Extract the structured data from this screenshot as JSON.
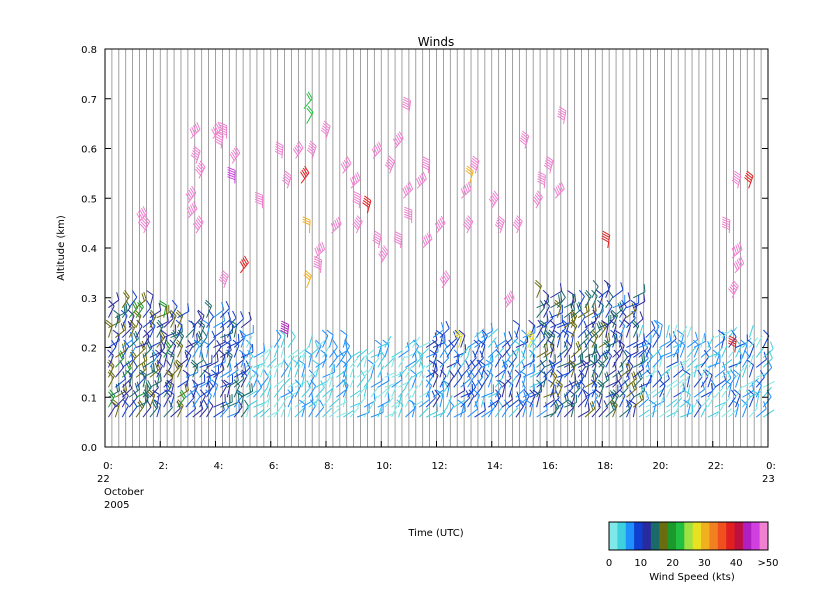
{
  "chart_data": {
    "type": "wind-barb",
    "title": "Winds",
    "xlabel": "Time (UTC)",
    "ylabel": "Altitude (km)",
    "xlim": [
      0,
      24
    ],
    "ylim": [
      0,
      0.8
    ],
    "y_ticks": [
      "0.0",
      "0.1",
      "0.2",
      "0.3",
      "0.4",
      "0.5",
      "0.6",
      "0.7",
      "0.8"
    ],
    "x_ticks": [
      {
        "v": 0,
        "label": "0:"
      },
      {
        "v": 2,
        "label": "2:"
      },
      {
        "v": 4,
        "label": "4:"
      },
      {
        "v": 6,
        "label": "6:"
      },
      {
        "v": 8,
        "label": "8:"
      },
      {
        "v": 10,
        "label": "10:"
      },
      {
        "v": 12,
        "label": "12:"
      },
      {
        "v": 14,
        "label": "14:"
      },
      {
        "v": 16,
        "label": "16:"
      },
      {
        "v": 18,
        "label": "18:"
      },
      {
        "v": 20,
        "label": "20:"
      },
      {
        "v": 22,
        "label": "22:"
      },
      {
        "v": 24,
        "label": "0:"
      }
    ],
    "date_labels": {
      "start_day": "22",
      "start_month": "October",
      "start_year": "2005",
      "end_day": "23"
    },
    "profile_interval_hours": 0.25,
    "grid": "vertical lines at each profile time",
    "low_level_winds": {
      "altitude_range_km": [
        0.05,
        0.3
      ],
      "description_note": "",
      "segments": [
        {
          "t0": 0.0,
          "t1": 2.8,
          "top": 0.28,
          "speed_range": [
            8,
            20
          ]
        },
        {
          "t0": 2.8,
          "t1": 5.0,
          "top": 0.25,
          "speed_range": [
            6,
            16
          ]
        },
        {
          "t0": 5.0,
          "t1": 11.5,
          "top": 0.2,
          "speed_range": [
            0,
            8
          ]
        },
        {
          "t0": 11.5,
          "t1": 15.5,
          "top": 0.22,
          "speed_range": [
            4,
            12
          ]
        },
        {
          "t0": 15.5,
          "t1": 19.2,
          "top": 0.3,
          "speed_range": [
            8,
            18
          ]
        },
        {
          "t0": 19.2,
          "t1": 24.0,
          "top": 0.22,
          "speed_range": [
            0,
            10
          ]
        }
      ]
    },
    "upper_winds": [
      {
        "t": 3.1,
        "alt": 0.62,
        "kts": 52
      },
      {
        "t": 3.3,
        "alt": 0.57,
        "kts": 52
      },
      {
        "t": 3.4,
        "alt": 0.54,
        "kts": 52
      },
      {
        "t": 3.0,
        "alt": 0.49,
        "kts": 52
      },
      {
        "t": 3.0,
        "alt": 0.46,
        "kts": 52
      },
      {
        "t": 3.3,
        "alt": 0.43,
        "kts": 52
      },
      {
        "t": 3.9,
        "alt": 0.62,
        "kts": 52
      },
      {
        "t": 4.2,
        "alt": 0.6,
        "kts": 52
      },
      {
        "t": 4.4,
        "alt": 0.62,
        "kts": 52
      },
      {
        "t": 4.6,
        "alt": 0.57,
        "kts": 52
      },
      {
        "t": 4.7,
        "alt": 0.53,
        "kts": 48
      },
      {
        "t": 4.9,
        "alt": 0.35,
        "kts": 40
      },
      {
        "t": 4.3,
        "alt": 0.32,
        "kts": 52
      },
      {
        "t": 1.2,
        "alt": 0.45,
        "kts": 52
      },
      {
        "t": 1.4,
        "alt": 0.43,
        "kts": 52
      },
      {
        "t": 5.7,
        "alt": 0.48,
        "kts": 52
      },
      {
        "t": 6.4,
        "alt": 0.58,
        "kts": 52
      },
      {
        "t": 6.6,
        "alt": 0.52,
        "kts": 52
      },
      {
        "t": 6.9,
        "alt": 0.58,
        "kts": 52
      },
      {
        "t": 7.1,
        "alt": 0.53,
        "kts": 40
      },
      {
        "t": 7.2,
        "alt": 0.68,
        "kts": 22
      },
      {
        "t": 7.3,
        "alt": 0.65,
        "kts": 22
      },
      {
        "t": 7.3,
        "alt": 0.32,
        "kts": 32
      },
      {
        "t": 7.4,
        "alt": 0.43,
        "kts": 32
      },
      {
        "t": 7.6,
        "alt": 0.38,
        "kts": 52
      },
      {
        "t": 7.5,
        "alt": 0.58,
        "kts": 52
      },
      {
        "t": 7.8,
        "alt": 0.35,
        "kts": 52
      },
      {
        "t": 8.0,
        "alt": 0.62,
        "kts": 52
      },
      {
        "t": 8.2,
        "alt": 0.43,
        "kts": 52
      },
      {
        "t": 8.6,
        "alt": 0.55,
        "kts": 52
      },
      {
        "t": 8.9,
        "alt": 0.52,
        "kts": 52
      },
      {
        "t": 9.1,
        "alt": 0.43,
        "kts": 52
      },
      {
        "t": 9.2,
        "alt": 0.48,
        "kts": 52
      },
      {
        "t": 9.5,
        "alt": 0.47,
        "kts": 40
      },
      {
        "t": 9.7,
        "alt": 0.58,
        "kts": 52
      },
      {
        "t": 9.9,
        "alt": 0.4,
        "kts": 52
      },
      {
        "t": 10.0,
        "alt": 0.37,
        "kts": 52
      },
      {
        "t": 10.3,
        "alt": 0.55,
        "kts": 52
      },
      {
        "t": 10.5,
        "alt": 0.6,
        "kts": 52
      },
      {
        "t": 10.7,
        "alt": 0.4,
        "kts": 52
      },
      {
        "t": 10.8,
        "alt": 0.5,
        "kts": 52
      },
      {
        "t": 11.0,
        "alt": 0.67,
        "kts": 52
      },
      {
        "t": 11.1,
        "alt": 0.45,
        "kts": 52
      },
      {
        "t": 11.3,
        "alt": 0.52,
        "kts": 52
      },
      {
        "t": 11.5,
        "alt": 0.4,
        "kts": 52
      },
      {
        "t": 11.7,
        "alt": 0.55,
        "kts": 52
      },
      {
        "t": 12.0,
        "alt": 0.43,
        "kts": 52
      },
      {
        "t": 12.2,
        "alt": 0.32,
        "kts": 52
      },
      {
        "t": 12.9,
        "alt": 0.5,
        "kts": 52
      },
      {
        "t": 13.2,
        "alt": 0.53,
        "kts": 32
      },
      {
        "t": 13.4,
        "alt": 0.55,
        "kts": 52
      },
      {
        "t": 13.1,
        "alt": 0.43,
        "kts": 52
      },
      {
        "t": 14.0,
        "alt": 0.48,
        "kts": 52
      },
      {
        "t": 14.3,
        "alt": 0.43,
        "kts": 52
      },
      {
        "t": 14.5,
        "alt": 0.28,
        "kts": 52
      },
      {
        "t": 14.9,
        "alt": 0.43,
        "kts": 52
      },
      {
        "t": 15.2,
        "alt": 0.6,
        "kts": 52
      },
      {
        "t": 15.6,
        "alt": 0.48,
        "kts": 52
      },
      {
        "t": 15.9,
        "alt": 0.52,
        "kts": 52
      },
      {
        "t": 16.1,
        "alt": 0.55,
        "kts": 52
      },
      {
        "t": 16.3,
        "alt": 0.5,
        "kts": 52
      },
      {
        "t": 16.6,
        "alt": 0.65,
        "kts": 52
      },
      {
        "t": 18.2,
        "alt": 0.4,
        "kts": 40
      },
      {
        "t": 22.6,
        "alt": 0.43,
        "kts": 52
      },
      {
        "t": 22.7,
        "alt": 0.38,
        "kts": 52
      },
      {
        "t": 22.8,
        "alt": 0.35,
        "kts": 52
      },
      {
        "t": 22.7,
        "alt": 0.3,
        "kts": 52
      },
      {
        "t": 22.9,
        "alt": 0.52,
        "kts": 52
      },
      {
        "t": 23.3,
        "alt": 0.52,
        "kts": 40
      },
      {
        "t": 22.8,
        "alt": 0.19,
        "kts": 40
      },
      {
        "t": 6.6,
        "alt": 0.22,
        "kts": 45
      },
      {
        "t": 12.8,
        "alt": 0.2,
        "kts": 30
      },
      {
        "t": 15.3,
        "alt": 0.2,
        "kts": 30
      }
    ]
  },
  "colorbar": {
    "title": "Wind Speed (kts)",
    "tick_labels": [
      "0",
      "10",
      "20",
      "30",
      "40",
      ">50"
    ],
    "colors": [
      "#7fe8e8",
      "#3fd0e0",
      "#1e90ff",
      "#1040d0",
      "#2a2aa0",
      "#1a6a6a",
      "#6b6b10",
      "#1a9a2a",
      "#22c040",
      "#a0e040",
      "#e8e020",
      "#f0b020",
      "#f08020",
      "#f05020",
      "#e02020",
      "#c01040",
      "#b020c0",
      "#d040e0",
      "#f080d0"
    ]
  }
}
